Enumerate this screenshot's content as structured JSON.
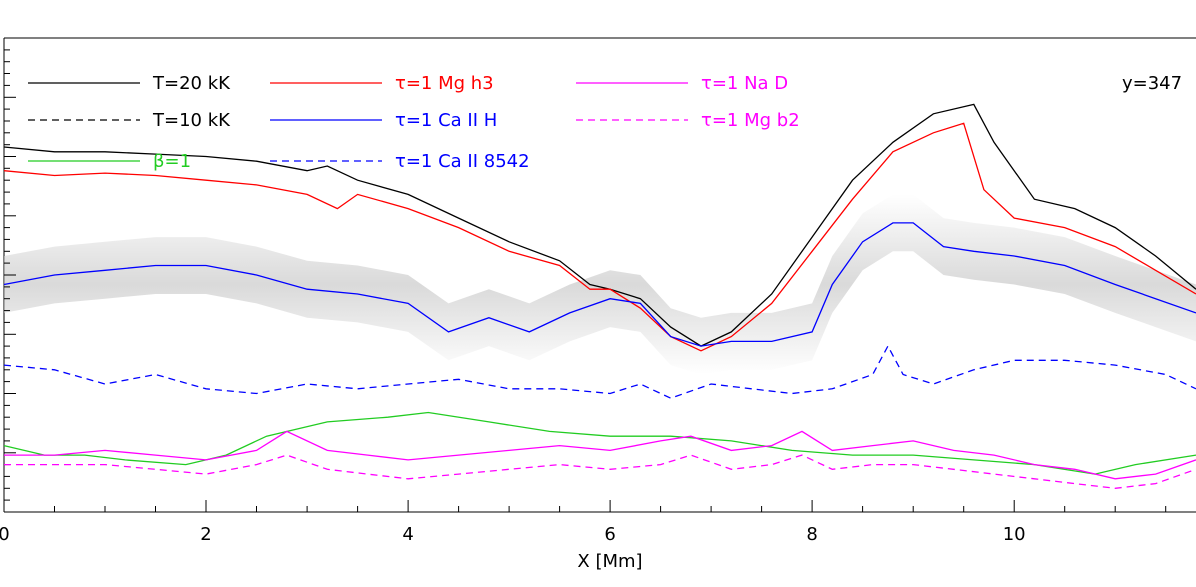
{
  "chart_data": {
    "type": "line",
    "title": "",
    "xlabel": "X [Mm]",
    "ylabel": "",
    "xlim": [
      0,
      11.8
    ],
    "ylim": [
      0,
      1
    ],
    "x_ticks": [
      "0",
      "2",
      "4",
      "6",
      "8",
      "10"
    ],
    "x_tick_values": [
      0,
      2,
      4,
      6,
      8,
      10
    ],
    "annotation": "y=347",
    "legend": [
      {
        "label": "T=20 kK",
        "color": "#000000",
        "dash": "solid"
      },
      {
        "label": "T=10 kK",
        "color": "#000000",
        "dash": "dashed"
      },
      {
        "label": "β=1",
        "color": "#22cc22",
        "dash": "solid"
      },
      {
        "label": "τ=1 Mg h3",
        "color": "#ff0000",
        "dash": "solid"
      },
      {
        "label": "τ=1 Ca II H",
        "color": "#0000ff",
        "dash": "solid"
      },
      {
        "label": "τ=1 Ca II 8542",
        "color": "#0000ff",
        "dash": "dashed"
      },
      {
        "label": "τ=1 Na D",
        "color": "#ff00ff",
        "dash": "solid"
      },
      {
        "label": "τ=1 Mg b2",
        "color": "#ff00ff",
        "dash": "dashed"
      }
    ],
    "series": [
      {
        "name": "T=20 kK",
        "color": "#000000",
        "dash": "solid",
        "x": [
          0,
          0.5,
          1,
          1.5,
          2,
          2.5,
          3,
          3.2,
          3.5,
          4,
          4.5,
          5,
          5.5,
          5.8,
          6,
          6.3,
          6.6,
          6.9,
          7.2,
          7.6,
          8,
          8.4,
          8.8,
          9.2,
          9.6,
          9.8,
          10.2,
          10.6,
          11,
          11.4,
          11.8
        ],
        "y": [
          0.77,
          0.76,
          0.76,
          0.755,
          0.75,
          0.74,
          0.72,
          0.73,
          0.7,
          0.67,
          0.62,
          0.57,
          0.53,
          0.48,
          0.47,
          0.45,
          0.39,
          0.35,
          0.38,
          0.46,
          0.58,
          0.7,
          0.78,
          0.84,
          0.86,
          0.78,
          0.66,
          0.64,
          0.6,
          0.54,
          0.47
        ]
      },
      {
        "name": "τ=1 Mg h3",
        "color": "#ff0000",
        "dash": "solid",
        "x": [
          0,
          0.5,
          1,
          1.5,
          2,
          2.5,
          3,
          3.3,
          3.5,
          4,
          4.5,
          5,
          5.5,
          5.8,
          6,
          6.3,
          6.6,
          6.9,
          7.2,
          7.6,
          8,
          8.4,
          8.8,
          9.2,
          9.5,
          9.7,
          10,
          10.5,
          11,
          11.4,
          11.8
        ],
        "y": [
          0.72,
          0.71,
          0.715,
          0.71,
          0.7,
          0.69,
          0.67,
          0.64,
          0.67,
          0.64,
          0.6,
          0.55,
          0.52,
          0.47,
          0.47,
          0.43,
          0.37,
          0.34,
          0.37,
          0.44,
          0.55,
          0.66,
          0.76,
          0.8,
          0.82,
          0.68,
          0.62,
          0.6,
          0.56,
          0.51,
          0.46
        ]
      },
      {
        "name": "τ=1 Ca II H",
        "color": "#0000ff",
        "dash": "solid",
        "x": [
          0,
          0.5,
          1,
          1.5,
          2,
          2.5,
          3,
          3.5,
          4,
          4.4,
          4.8,
          5.2,
          5.6,
          6,
          6.3,
          6.6,
          6.9,
          7.2,
          7.6,
          8,
          8.2,
          8.5,
          8.8,
          9,
          9.3,
          9.6,
          10,
          10.5,
          11,
          11.4,
          11.8
        ],
        "y": [
          0.48,
          0.5,
          0.51,
          0.52,
          0.52,
          0.5,
          0.47,
          0.46,
          0.44,
          0.38,
          0.41,
          0.38,
          0.42,
          0.45,
          0.44,
          0.37,
          0.35,
          0.36,
          0.36,
          0.38,
          0.48,
          0.57,
          0.61,
          0.61,
          0.56,
          0.55,
          0.54,
          0.52,
          0.48,
          0.45,
          0.42
        ]
      },
      {
        "name": "τ=1 Ca II 8542",
        "color": "#0000ff",
        "dash": "dashed",
        "x": [
          0,
          0.5,
          1,
          1.5,
          2,
          2.5,
          3,
          3.5,
          4,
          4.5,
          5,
          5.5,
          6,
          6.3,
          6.6,
          7,
          7.4,
          7.8,
          8.2,
          8.6,
          8.75,
          8.9,
          9.2,
          9.6,
          10,
          10.5,
          11,
          11.5,
          11.8
        ],
        "y": [
          0.31,
          0.3,
          0.27,
          0.29,
          0.26,
          0.25,
          0.27,
          0.26,
          0.27,
          0.28,
          0.26,
          0.26,
          0.25,
          0.27,
          0.24,
          0.27,
          0.26,
          0.25,
          0.26,
          0.29,
          0.35,
          0.29,
          0.27,
          0.3,
          0.32,
          0.32,
          0.31,
          0.29,
          0.26
        ]
      },
      {
        "name": "β=1",
        "color": "#22cc22",
        "dash": "solid",
        "x": [
          0,
          0.4,
          0.8,
          1.2,
          1.8,
          2.2,
          2.6,
          3.2,
          3.8,
          4.2,
          4.8,
          5.4,
          6,
          6.6,
          7.2,
          7.8,
          8.4,
          9,
          9.6,
          10.2,
          10.8,
          11.2,
          11.8
        ],
        "y": [
          0.14,
          0.12,
          0.12,
          0.11,
          0.1,
          0.12,
          0.16,
          0.19,
          0.2,
          0.21,
          0.19,
          0.17,
          0.16,
          0.16,
          0.15,
          0.13,
          0.12,
          0.12,
          0.11,
          0.1,
          0.08,
          0.1,
          0.12
        ]
      },
      {
        "name": "τ=1 Na D",
        "color": "#ff00ff",
        "dash": "solid",
        "x": [
          0,
          0.5,
          1,
          1.5,
          2,
          2.5,
          2.8,
          3.2,
          3.6,
          4,
          4.5,
          5,
          5.5,
          6,
          6.5,
          6.8,
          7.2,
          7.6,
          7.9,
          8.2,
          8.6,
          9,
          9.4,
          9.8,
          10.2,
          10.6,
          11,
          11.4,
          11.8
        ],
        "y": [
          0.12,
          0.12,
          0.13,
          0.12,
          0.11,
          0.13,
          0.17,
          0.13,
          0.12,
          0.11,
          0.12,
          0.13,
          0.14,
          0.13,
          0.15,
          0.16,
          0.13,
          0.14,
          0.17,
          0.13,
          0.14,
          0.15,
          0.13,
          0.12,
          0.1,
          0.09,
          0.07,
          0.08,
          0.11
        ]
      },
      {
        "name": "τ=1 Mg b2",
        "color": "#ff00ff",
        "dash": "dashed",
        "x": [
          0,
          0.5,
          1,
          1.5,
          2,
          2.5,
          2.8,
          3.2,
          3.6,
          4,
          4.5,
          5,
          5.5,
          6,
          6.5,
          6.8,
          7.2,
          7.6,
          7.9,
          8.2,
          8.6,
          9,
          9.4,
          9.8,
          10.2,
          10.6,
          11,
          11.4,
          11.8
        ],
        "y": [
          0.1,
          0.1,
          0.1,
          0.09,
          0.08,
          0.1,
          0.12,
          0.09,
          0.08,
          0.07,
          0.08,
          0.09,
          0.1,
          0.09,
          0.1,
          0.12,
          0.09,
          0.1,
          0.12,
          0.09,
          0.1,
          0.1,
          0.09,
          0.08,
          0.07,
          0.06,
          0.05,
          0.06,
          0.09
        ]
      }
    ]
  }
}
